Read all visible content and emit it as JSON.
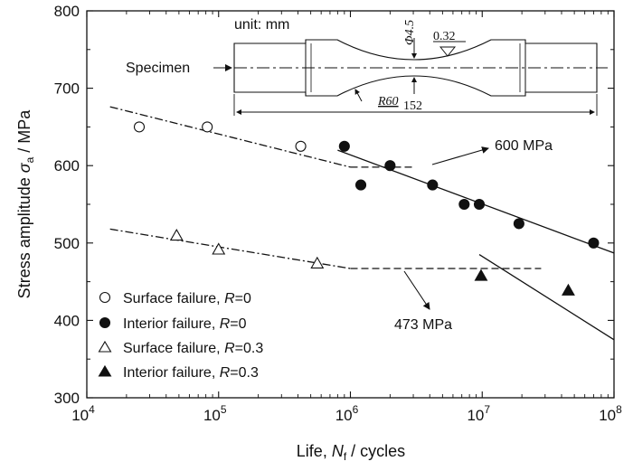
{
  "chart_data": {
    "type": "scatter",
    "x_scale": "log",
    "xlim": [
      10000,
      100000000
    ],
    "ylim": [
      300,
      800
    ],
    "x_ticks": [
      {
        "value": 10000,
        "base": "10",
        "exp": "4"
      },
      {
        "value": 100000,
        "base": "10",
        "exp": "5"
      },
      {
        "value": 1000000,
        "base": "10",
        "exp": "6"
      },
      {
        "value": 10000000,
        "base": "10",
        "exp": "7"
      },
      {
        "value": 100000000,
        "base": "10",
        "exp": "8"
      }
    ],
    "y_ticks": [
      300,
      400,
      500,
      600,
      700,
      800
    ],
    "xlabel": {
      "text": "Life, ",
      "var": "N",
      "sub": "f",
      "unit": " / cycles"
    },
    "ylabel": {
      "text": "Stress amplitude ",
      "var": "σ",
      "sub": "a",
      "unit": " / MPa"
    },
    "grid": false,
    "legend_position": "bottom-left",
    "series": [
      {
        "name": "Surface failure, ",
        "r_label": "R",
        "r_value": "=0",
        "marker": "circle-open",
        "points": [
          [
            25000,
            650
          ],
          [
            82000,
            650
          ],
          [
            420000,
            625
          ]
        ]
      },
      {
        "name": "Interior failure, ",
        "r_label": "R",
        "r_value": "=0",
        "marker": "circle-filled",
        "points": [
          [
            900000,
            625
          ],
          [
            1200000,
            575
          ],
          [
            2000000,
            600
          ],
          [
            4200000,
            575
          ],
          [
            7300000,
            550
          ],
          [
            9500000,
            550
          ],
          [
            19000000,
            525
          ],
          [
            70000000,
            500
          ]
        ]
      },
      {
        "name": "Surface failure, ",
        "r_label": "R",
        "r_value": "=0.3",
        "marker": "triangle-open",
        "points": [
          [
            48000,
            509
          ],
          [
            100000,
            491
          ],
          [
            560000,
            473
          ]
        ]
      },
      {
        "name": "Interior failure, ",
        "r_label": "R",
        "r_value": "=0.3",
        "marker": "triangle-filled",
        "points": [
          [
            9800000,
            457
          ],
          [
            45000000,
            438
          ]
        ]
      }
    ],
    "fit_lines": [
      {
        "style": "dashdot",
        "points": [
          [
            15000,
            676
          ],
          [
            1000000,
            598
          ]
        ]
      },
      {
        "style": "dashed",
        "points": [
          [
            1000000,
            598
          ],
          [
            3000000,
            598
          ]
        ]
      },
      {
        "style": "solid",
        "points": [
          [
            800000,
            620
          ],
          [
            100000000,
            487
          ]
        ]
      },
      {
        "style": "dashdot",
        "points": [
          [
            15000,
            518
          ],
          [
            1000000,
            467
          ]
        ]
      },
      {
        "style": "dashed",
        "points": [
          [
            1000000,
            467
          ],
          [
            28000000,
            467
          ]
        ]
      },
      {
        "style": "solid",
        "points": [
          [
            9500000,
            485
          ],
          [
            100000000,
            375
          ]
        ]
      }
    ],
    "annotations": [
      {
        "text": "600 MPa",
        "value": 600
      },
      {
        "text": "473 MPa",
        "value": 473
      }
    ],
    "inset": {
      "unit_label": "unit: mm",
      "specimen_label": "Specimen",
      "diameter_label": "Φ4.5",
      "roughness_label": "0.32",
      "radius_label": "R60",
      "length_label": "152"
    }
  }
}
